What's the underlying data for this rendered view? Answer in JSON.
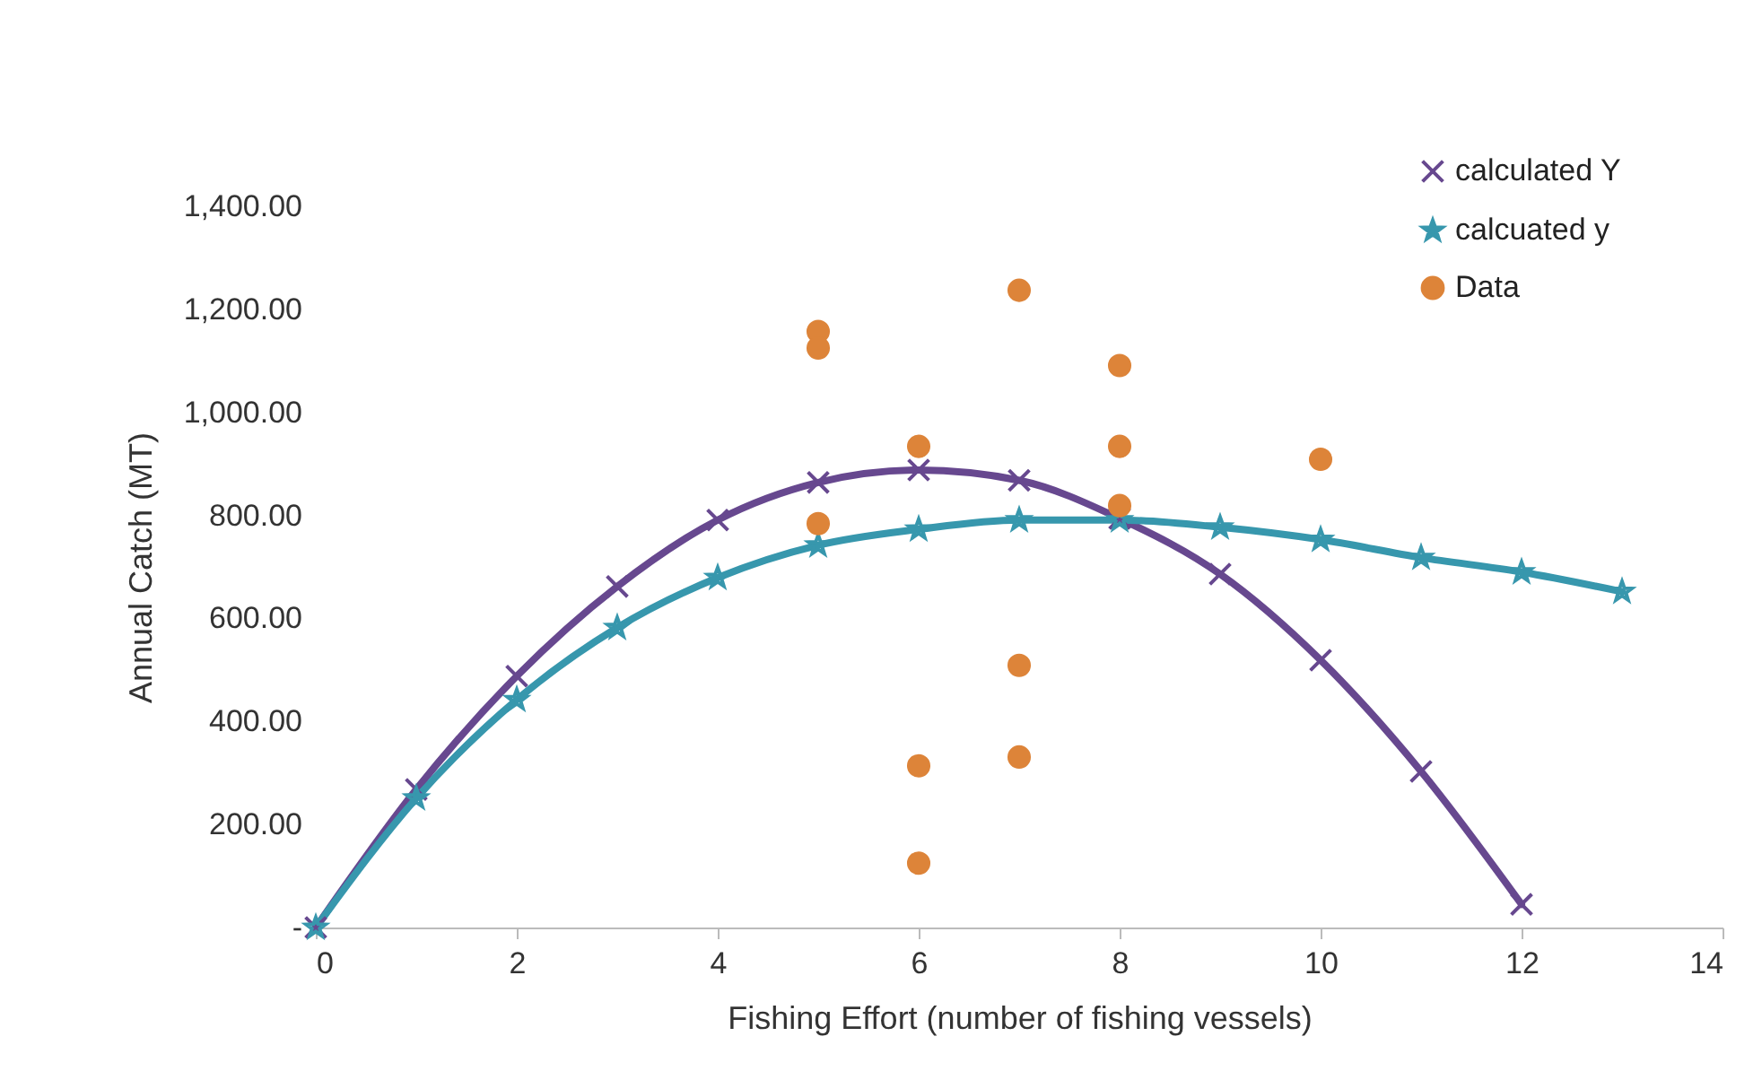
{
  "chart_data": {
    "type": "line",
    "xlabel": "Fishing Effort (number of fishing vessels)",
    "ylabel": "Annual Catch (MT)",
    "xlim": [
      0,
      14
    ],
    "xticks": [
      0,
      2,
      4,
      6,
      8,
      10,
      12,
      14
    ],
    "ylim": [
      0,
      1400
    ],
    "yticks": [
      {
        "value": 0,
        "label": "-"
      },
      {
        "value": 200,
        "label": "200.00"
      },
      {
        "value": 400,
        "label": "400.00"
      },
      {
        "value": 600,
        "label": "600.00"
      },
      {
        "value": 800,
        "label": "800.00"
      },
      {
        "value": 1000,
        "label": "1,000.00"
      },
      {
        "value": 1200,
        "label": "1,200.00"
      },
      {
        "value": 1400,
        "label": "1,400.00"
      }
    ],
    "grid": false,
    "legend": "top right",
    "series": [
      {
        "name": "calculated Y",
        "color": "#67488f",
        "marker": "cross",
        "x": [
          0,
          1,
          2,
          3,
          4,
          5,
          6,
          7,
          8,
          9,
          10,
          11,
          12
        ],
        "values": [
          0,
          268,
          488,
          662,
          791,
          864,
          888,
          868,
          794,
          686,
          519,
          303,
          45
        ]
      },
      {
        "name": "calcuated y",
        "color": "#3797ad",
        "marker": "star",
        "x": [
          0,
          1,
          2,
          3,
          4,
          5,
          6,
          7,
          8,
          9,
          10,
          11,
          12,
          13
        ],
        "values": [
          0,
          251,
          442,
          582,
          679,
          742,
          773,
          791,
          791,
          777,
          753,
          718,
          690,
          652
        ]
      },
      {
        "name": "Data",
        "type": "scatter",
        "color": "#dd8439",
        "marker": "circle",
        "x": [
          5,
          5,
          5,
          6,
          6,
          6,
          7,
          7,
          7,
          8,
          8,
          8,
          10
        ],
        "values": [
          1157,
          1125,
          784,
          934,
          314,
          125,
          1237,
          509,
          331,
          1091,
          934,
          819,
          909
        ]
      }
    ]
  }
}
